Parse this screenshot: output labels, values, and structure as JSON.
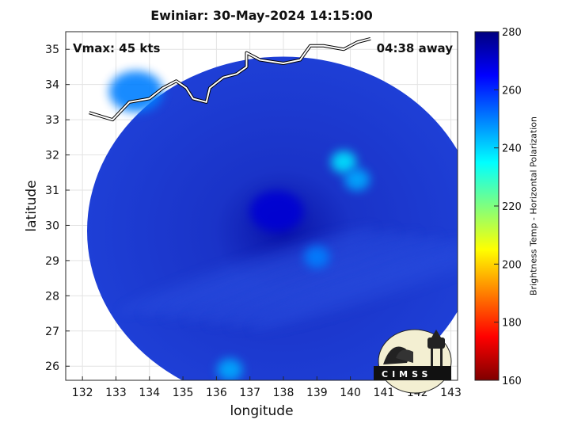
{
  "chart_data": {
    "type": "heatmap",
    "title": "Ewiniar: 30-May-2024 14:15:00",
    "xlabel": "longitude",
    "ylabel": "latitude",
    "xlim": [
      131.5,
      143.2
    ],
    "ylim": [
      25.6,
      35.5
    ],
    "x_ticks": [
      132,
      133,
      134,
      135,
      136,
      137,
      138,
      139,
      140,
      141,
      142,
      143
    ],
    "y_ticks": [
      26,
      27,
      28,
      29,
      30,
      31,
      32,
      33,
      34,
      35
    ],
    "grid": true,
    "storm_center": {
      "lon": 138.0,
      "lat": 30.0
    },
    "swath_radius_deg": 5.8,
    "vmax_text": "Vmax: 45 kts",
    "time_offset_text": "04:38 away",
    "colorbar": {
      "label": "Brightness Temp - Horizontal Polarization",
      "range": [
        160,
        280
      ],
      "ticks": [
        160,
        180,
        200,
        220,
        240,
        260,
        280
      ],
      "colormap": "jet"
    },
    "features": [
      {
        "type": "warm core / eye",
        "lon": 137.8,
        "lat": 30.4,
        "temp": 270
      },
      {
        "type": "cold feature",
        "lon": 139.8,
        "lat": 31.8,
        "temp": 238
      },
      {
        "type": "cold feature",
        "lon": 140.2,
        "lat": 31.3,
        "temp": 245
      },
      {
        "type": "cold feature",
        "lon": 139.0,
        "lat": 29.1,
        "temp": 250
      },
      {
        "type": "cold feature",
        "lon": 136.4,
        "lat": 25.9,
        "temp": 245
      },
      {
        "type": "land / coast",
        "lon": 133.6,
        "lat": 33.8,
        "temp": 250
      }
    ],
    "coastline": [
      [
        132.2,
        33.2
      ],
      [
        132.9,
        33.0
      ],
      [
        133.4,
        33.5
      ],
      [
        134.0,
        33.6
      ],
      [
        134.4,
        33.9
      ],
      [
        134.8,
        34.1
      ],
      [
        135.1,
        33.9
      ],
      [
        135.3,
        33.6
      ],
      [
        135.7,
        33.5
      ],
      [
        135.8,
        33.9
      ],
      [
        136.2,
        34.2
      ],
      [
        136.6,
        34.3
      ],
      [
        136.9,
        34.5
      ],
      [
        136.9,
        34.9
      ],
      [
        137.3,
        34.7
      ],
      [
        138.0,
        34.6
      ],
      [
        138.5,
        34.7
      ],
      [
        138.8,
        35.1
      ],
      [
        139.2,
        35.1
      ],
      [
        139.8,
        35.0
      ],
      [
        140.2,
        35.2
      ],
      [
        140.6,
        35.3
      ]
    ]
  },
  "logo": {
    "text": "CIMSS"
  }
}
